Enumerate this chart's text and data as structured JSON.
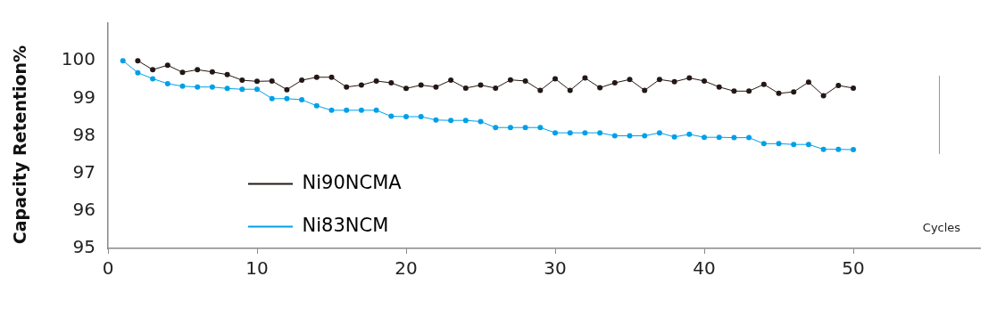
{
  "chart_data": {
    "type": "line",
    "xlabel": "Cycles",
    "ylabel": "Capacity Retention%",
    "xlim": [
      0,
      58.5
    ],
    "xticks": [
      0,
      10,
      20,
      30,
      40,
      50
    ],
    "ylim": [
      95,
      101
    ],
    "yticks": [
      95,
      96,
      97,
      98,
      99,
      100
    ],
    "grid": false,
    "legend": "bottom left",
    "marker": "circle",
    "line_style": "solid",
    "series": [
      {
        "name": "Ni90NCMA",
        "color": "#231815",
        "x": [
          2,
          3,
          4,
          5,
          6,
          7,
          8,
          9,
          10,
          11,
          12,
          13,
          14,
          15,
          16,
          17,
          18,
          19,
          20,
          21,
          22,
          23,
          24,
          25,
          26,
          27,
          28,
          29,
          30,
          31,
          32,
          33,
          34,
          35,
          36,
          37,
          38,
          39,
          40,
          41,
          42,
          43,
          44,
          45,
          46,
          47,
          48,
          49,
          50
        ],
        "values": [
          100.0,
          99.76,
          99.88,
          99.69,
          99.76,
          99.7,
          99.63,
          99.48,
          99.45,
          99.46,
          99.23,
          99.48,
          99.56,
          99.56,
          99.3,
          99.35,
          99.46,
          99.41,
          99.26,
          99.35,
          99.3,
          99.48,
          99.27,
          99.35,
          99.27,
          99.49,
          99.46,
          99.21,
          99.52,
          99.21,
          99.54,
          99.28,
          99.41,
          99.5,
          99.21,
          99.5,
          99.44,
          99.54,
          99.46,
          99.3,
          99.19,
          99.19,
          99.37,
          99.13,
          99.17,
          99.43,
          99.07,
          99.34,
          99.27
        ]
      },
      {
        "name": "Ni83NCM",
        "color": "#00a0e9",
        "x": [
          1,
          2,
          3,
          4,
          5,
          6,
          7,
          8,
          9,
          10,
          11,
          12,
          13,
          14,
          15,
          16,
          17,
          18,
          19,
          20,
          21,
          22,
          23,
          24,
          25,
          26,
          27,
          28,
          29,
          30,
          31,
          32,
          33,
          34,
          35,
          36,
          37,
          38,
          39,
          40,
          41,
          42,
          43,
          44,
          45,
          46,
          47,
          48,
          49,
          50
        ],
        "values": [
          100.0,
          99.68,
          99.52,
          99.39,
          99.32,
          99.3,
          99.3,
          99.26,
          99.24,
          99.24,
          98.99,
          98.99,
          98.96,
          98.8,
          98.68,
          98.68,
          98.68,
          98.68,
          98.52,
          98.51,
          98.51,
          98.42,
          98.41,
          98.41,
          98.38,
          98.22,
          98.22,
          98.22,
          98.22,
          98.08,
          98.08,
          98.08,
          98.08,
          98.0,
          98.0,
          98.0,
          98.08,
          97.97,
          98.04,
          97.96,
          97.96,
          97.95,
          97.95,
          97.79,
          97.79,
          97.77,
          97.77,
          97.64,
          97.64,
          97.63
        ]
      }
    ]
  }
}
